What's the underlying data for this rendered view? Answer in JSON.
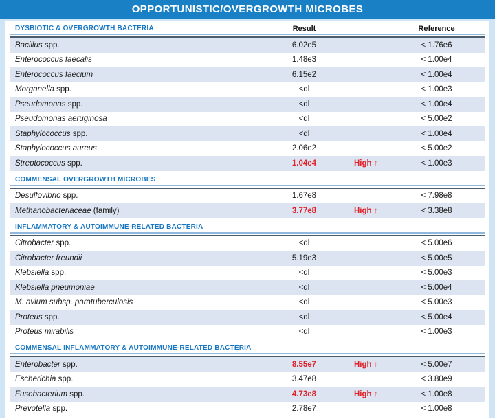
{
  "title": "OPPORTUNISTIC/OVERGROWTH MICROBES",
  "columns": {
    "result": "Result",
    "reference": "Reference"
  },
  "high_label": "High",
  "high_arrow": "↑",
  "colors": {
    "title_bar": "#1a80c5",
    "section_text": "#1877c3",
    "shaded_row": "#dbe4f0",
    "high_red": "#e0212a",
    "page_background": "#cfe4f4",
    "table_top_line": "#4d5c6b",
    "header_underline": "#8fb8dc"
  },
  "sections": [
    {
      "label": "DYSBIOTIC & OVERGROWTH BACTERIA",
      "show_column_headers": true,
      "rows": [
        {
          "name_italic": "Bacillus",
          "name_regular": " spp.",
          "result": "6.02e5",
          "high": false,
          "reference": "< 1.76e6",
          "shaded": true
        },
        {
          "name_italic": "Enterococcus faecalis",
          "name_regular": "",
          "result": "1.48e3",
          "high": false,
          "reference": "< 1.00e4",
          "shaded": false
        },
        {
          "name_italic": "Enterococcus faecium",
          "name_regular": "",
          "result": "6.15e2",
          "high": false,
          "reference": "< 1.00e4",
          "shaded": true
        },
        {
          "name_italic": "Morganella",
          "name_regular": " spp.",
          "result": "<dl",
          "high": false,
          "reference": "< 1.00e3",
          "shaded": false
        },
        {
          "name_italic": "Pseudomonas",
          "name_regular": " spp.",
          "result": "<dl",
          "high": false,
          "reference": "< 1.00e4",
          "shaded": true
        },
        {
          "name_italic": "Pseudomonas aeruginosa",
          "name_regular": "",
          "result": "<dl",
          "high": false,
          "reference": "< 5.00e2",
          "shaded": false
        },
        {
          "name_italic": "Staphylococcus",
          "name_regular": " spp.",
          "result": "<dl",
          "high": false,
          "reference": "< 1.00e4",
          "shaded": true
        },
        {
          "name_italic": "Staphylococcus aureus",
          "name_regular": "",
          "result": "2.06e2",
          "high": false,
          "reference": "< 5.00e2",
          "shaded": false
        },
        {
          "name_italic": "Streptococcus",
          "name_regular": " spp.",
          "result": "1.04e4",
          "high": true,
          "reference": "< 1.00e3",
          "shaded": true
        }
      ]
    },
    {
      "label": "COMMENSAL OVERGROWTH MICROBES",
      "show_column_headers": false,
      "rows": [
        {
          "name_italic": "Desulfovibrio",
          "name_regular": " spp.",
          "result": "1.67e8",
          "high": false,
          "reference": "< 7.98e8",
          "shaded": false
        },
        {
          "name_italic": "Methanobacteriaceae",
          "name_regular": " (family)",
          "result": "3.77e8",
          "high": true,
          "reference": "< 3.38e8",
          "shaded": true
        }
      ]
    },
    {
      "label": "INFLAMMATORY & AUTOIMMUNE-RELATED BACTERIA",
      "show_column_headers": false,
      "rows": [
        {
          "name_italic": "Citrobacter",
          "name_regular": " spp.",
          "result": "<dl",
          "high": false,
          "reference": "< 5.00e6",
          "shaded": false
        },
        {
          "name_italic": "Citrobacter freundii",
          "name_regular": "",
          "result": "5.19e3",
          "high": false,
          "reference": "< 5.00e5",
          "shaded": true
        },
        {
          "name_italic": "Klebsiella",
          "name_regular": " spp.",
          "result": "<dl",
          "high": false,
          "reference": "< 5.00e3",
          "shaded": false
        },
        {
          "name_italic": "Klebsiella pneumoniae",
          "name_regular": "",
          "result": "<dl",
          "high": false,
          "reference": "< 5.00e4",
          "shaded": true
        },
        {
          "name_italic": "M. avium subsp. paratuberculosis",
          "name_regular": "",
          "result": "<dl",
          "high": false,
          "reference": "< 5.00e3",
          "shaded": false
        },
        {
          "name_italic": "Proteus",
          "name_regular": " spp.",
          "result": "<dl",
          "high": false,
          "reference": "< 5.00e4",
          "shaded": true
        },
        {
          "name_italic": "Proteus mirabilis",
          "name_regular": "",
          "result": "<dl",
          "high": false,
          "reference": "< 1.00e3",
          "shaded": false
        }
      ]
    },
    {
      "label": "COMMENSAL INFLAMMATORY & AUTOIMMUNE-RELATED BACTERIA",
      "show_column_headers": false,
      "rows": [
        {
          "name_italic": "Enterobacter",
          "name_regular": " spp.",
          "result": "8.55e7",
          "high": true,
          "reference": "< 5.00e7",
          "shaded": true
        },
        {
          "name_italic": "Escherichia",
          "name_regular": " spp.",
          "result": "3.47e8",
          "high": false,
          "reference": "< 3.80e9",
          "shaded": false
        },
        {
          "name_italic": "Fusobacterium",
          "name_regular": " spp.",
          "result": "4.73e8",
          "high": true,
          "reference": "< 1.00e8",
          "shaded": true
        },
        {
          "name_italic": "Prevotella",
          "name_regular": " spp.",
          "result": "2.78e7",
          "high": false,
          "reference": "< 1.00e8",
          "shaded": false
        }
      ]
    }
  ]
}
